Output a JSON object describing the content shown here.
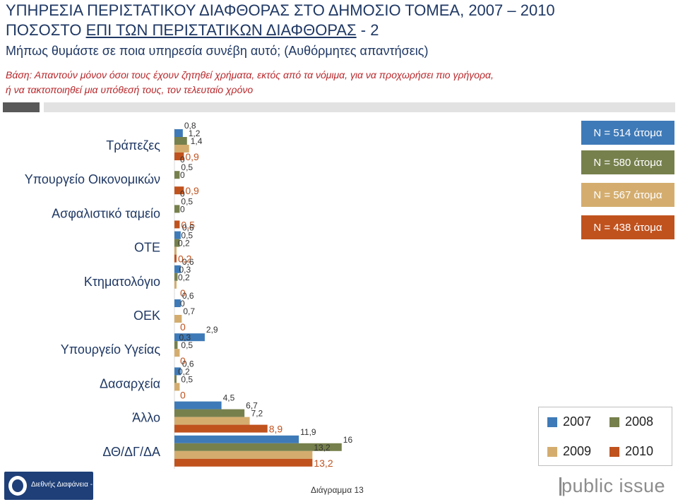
{
  "header": {
    "title_line1": "ΥΠΗΡΕΣΙΑ ΠΕΡΙΣΤΑΤΙΚΟΥ ΔΙΑΦΘΟΡΑΣ ΣΤΟ ΔΗΜΟΣΙΟ ΤΟΜΕΑ, 2007 – 2010",
    "title_line2_prefix": "ΠΟΣΟΣΤΟ ",
    "title_line2_underlined": "ΕΠΙ ΤΩΝ ΠΕΡΙΣΤΑΤΙΚΩΝ ΔΙΑΦΘΟΡΑΣ",
    "title_line2_suffix": " - 2",
    "question": "Μήπως θυμάστε σε ποια υπηρεσία συνέβη αυτό; (Αυθόρμητες απαντήσεις)",
    "base_line1": "Βάση: Απαντούν μόνον όσοι τους έχουν ζητηθεί χρήματα, εκτός από τα νόμιμα, για να προχωρήσει πιο γρήγορα,",
    "base_line2": "ή να τακτοποιηθεί μια υπόθεσή τους, τον τελευταίο χρόνο"
  },
  "colors": {
    "title": "#1f3864",
    "base_text": "#b8262a",
    "s2007": "#3e7ab8",
    "s2008": "#76804c",
    "s2009": "#d4ad6e",
    "s2010": "#c0521e",
    "divider_dark": "#595959",
    "divider_light": "#e2e2e2"
  },
  "sample_sizes": [
    {
      "year": "2007",
      "label": "N = 514 άτομα"
    },
    {
      "year": "2008",
      "label": "N = 580 άτομα"
    },
    {
      "year": "2009",
      "label": "N = 567 άτομα"
    },
    {
      "year": "2010",
      "label": "N = 438 άτομα"
    }
  ],
  "chart_data": {
    "type": "bar",
    "orientation": "horizontal",
    "categories": [
      "Τράπεζες",
      "Υπουργείο Οικονομικών",
      "Ασφαλιστικό ταμείο",
      "ΟΤΕ",
      "Κτηματολόγιο",
      "ΟΕΚ",
      "Υπουργείο Υγείας",
      "Δασαρχεία",
      "Άλλο",
      "ΔΘ/ΔΓ/ΔΑ"
    ],
    "series": [
      {
        "name": "2007",
        "values": [
          0.8,
          0,
          0,
          0.6,
          0.6,
          0.6,
          2.9,
          0.6,
          4.5,
          11.9
        ],
        "labels": [
          "0,8",
          "0",
          "0",
          "0,6",
          "0,6",
          "0,6",
          "2,9",
          "0,6",
          "4,5",
          "11,9"
        ]
      },
      {
        "name": "2008",
        "values": [
          1.2,
          0.5,
          0.5,
          0.5,
          0.3,
          0,
          0.3,
          0.2,
          6.7,
          16
        ],
        "labels": [
          "1,2",
          "0,5",
          "0,5",
          "0,5",
          "0,3",
          "0",
          "0,3",
          "0,2",
          "6,7",
          "16"
        ]
      },
      {
        "name": "2009",
        "values": [
          1.4,
          0,
          0,
          0.2,
          0.2,
          0.7,
          0.5,
          0.5,
          7.2,
          13.2
        ],
        "labels": [
          "1,4",
          "0",
          "0",
          "0,2",
          "0,2",
          "0,7",
          "0,5",
          "0,5",
          "7,2",
          "13,2"
        ]
      },
      {
        "name": "2010",
        "values": [
          0.9,
          0.9,
          0.5,
          0.2,
          0,
          0,
          0,
          0,
          8.9,
          13.2
        ],
        "labels": [
          "0,9",
          "0,9",
          "0,5",
          "0,2",
          "0",
          "0",
          "0",
          "0",
          "8,9",
          "13,2"
        ]
      }
    ],
    "legend_position": "bottom-right",
    "grid": false
  },
  "footer": {
    "logo_text": "Διεθνής Διαφάνεια - Ελλάς",
    "diagram_label": "Διάγραμμα 13",
    "brand": "public issue"
  }
}
